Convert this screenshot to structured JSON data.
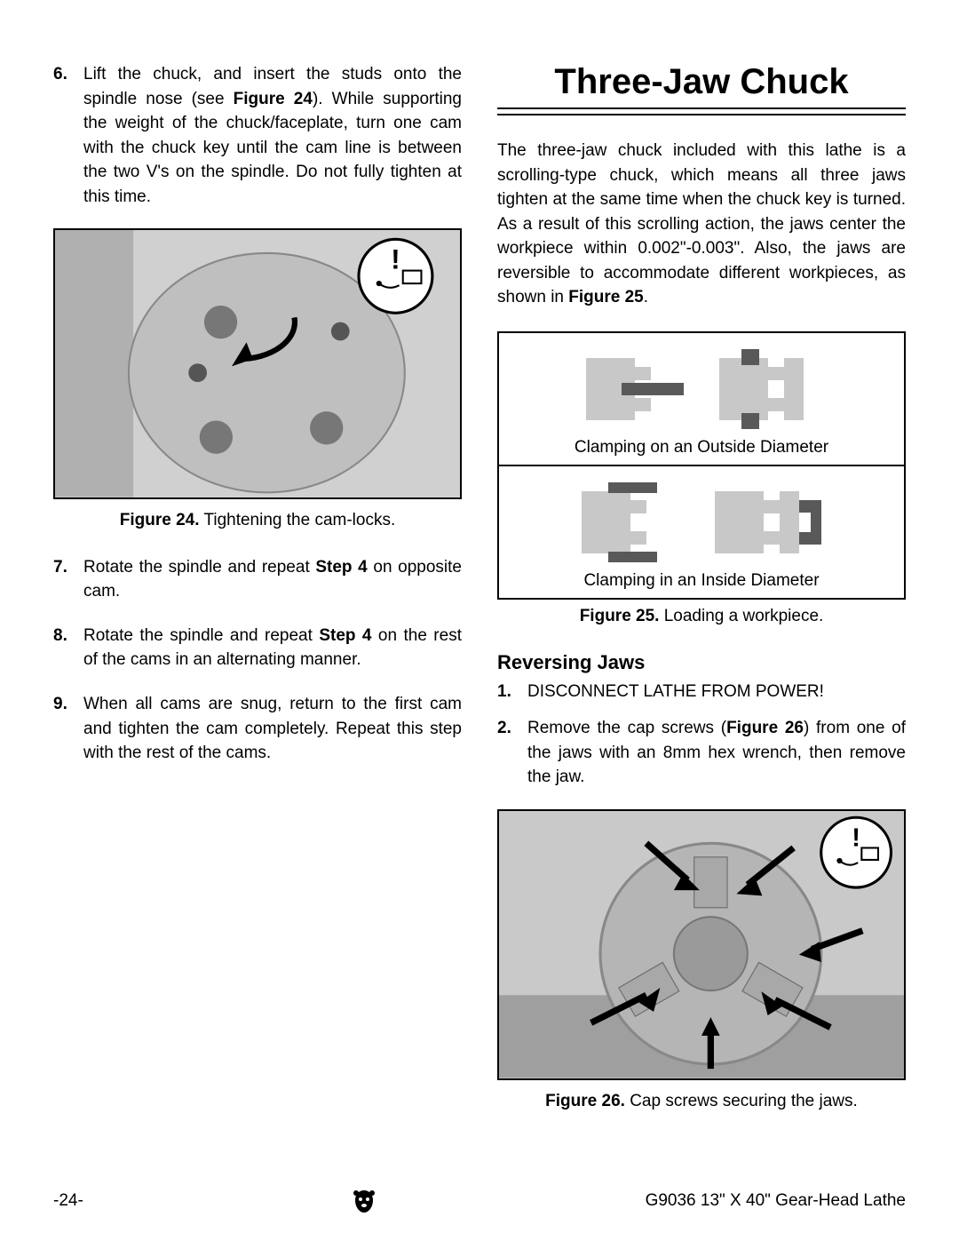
{
  "left": {
    "steps": [
      {
        "num": "6.",
        "html": "Lift the chuck, and insert the studs onto the spindle nose (see <b>Figure 24</b>). While supporting the weight of the chuck/faceplate, turn one cam with the chuck key until the cam line is between the two V's on the spindle. Do not fully tighten at this time."
      },
      {
        "num": "7.",
        "html": "Rotate the spindle and repeat <b>Step 4</b> on opposite cam."
      },
      {
        "num": "8.",
        "html": "Rotate the spindle and repeat <b>Step 4</b> on the rest of the cams in an alternating manner."
      },
      {
        "num": "9.",
        "html": "When all cams are snug, return to the first cam and tighten the cam completely. Repeat this step with the rest of the cams."
      }
    ],
    "fig24_caption_bold": "Figure 24.",
    "fig24_caption_rest": " Tightening the cam-locks."
  },
  "right": {
    "title": "Three-Jaw Chuck",
    "intro_html": "The three-jaw chuck included with this lathe is a scrolling-type chuck, which means all three jaws tighten at the same time when the chuck key is turned. As a result of this scrolling action, the jaws center the workpiece within 0.002\"-0.003\". Also, the jaws are reversible to accommodate different workpieces, as shown in <b>Figure 25</b>.",
    "diagram": {
      "top_label": "Clamping on an Outside Diameter",
      "bottom_label": "Clamping in an Inside Diameter",
      "colors": {
        "light": "#c8c8c8",
        "dark": "#595959",
        "border": "#000000"
      }
    },
    "fig25_caption_bold": "Figure 25.",
    "fig25_caption_rest": " Loading a workpiece.",
    "subhead": "Reversing Jaws",
    "steps": [
      {
        "num": "1.",
        "html": "DISCONNECT LATHE FROM POWER!"
      },
      {
        "num": "2.",
        "html": "Remove the cap screws (<b>Figure 26</b>) from one of the jaws with an 8mm hex wrench, then remove the jaw."
      }
    ],
    "fig26_caption_bold": "Figure 26.",
    "fig26_caption_rest": " Cap screws securing the jaws."
  },
  "footer": {
    "page_num": "-24-",
    "model": "G9036 13\" X 40\" Gear-Head Lathe"
  }
}
